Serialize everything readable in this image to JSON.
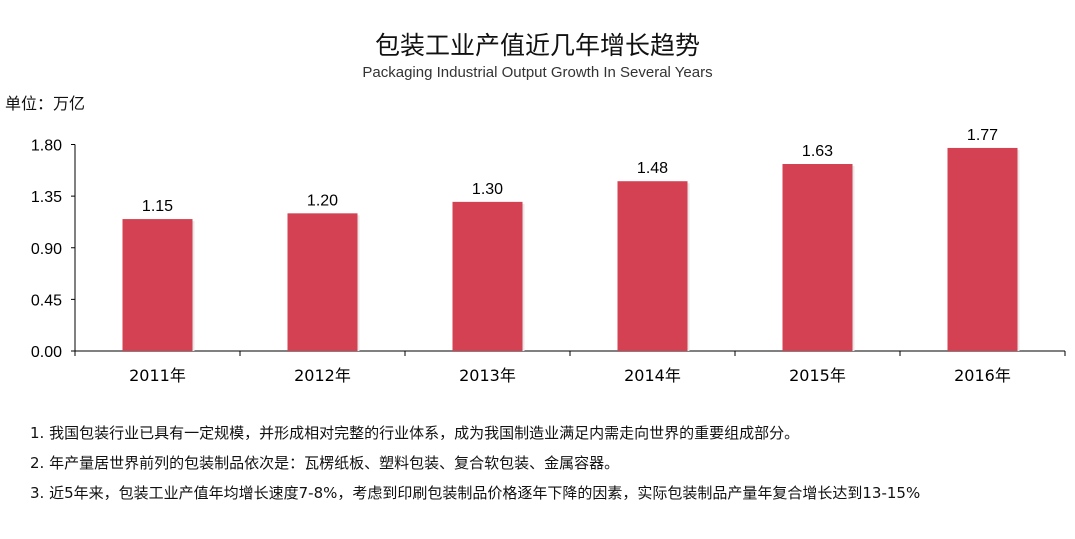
{
  "chart_data": {
    "type": "bar",
    "title": "包装工业产值近几年增长趋势",
    "subtitle": "Packaging Industrial Output Growth In Several Years",
    "ylabel": "单位：万亿",
    "categories": [
      "2011年",
      "2012年",
      "2013年",
      "2014年",
      "2015年",
      "2016年"
    ],
    "values": [
      1.15,
      1.2,
      1.3,
      1.48,
      1.63,
      1.77
    ],
    "value_labels": [
      "1.15",
      "1.20",
      "1.30",
      "1.48",
      "1.63",
      "1.77"
    ],
    "yticks": [
      "0.00",
      "0.45",
      "0.90",
      "1.35",
      "1.80"
    ],
    "ylim": [
      0,
      1.8
    ],
    "grid": false,
    "bar_color": "#d44152"
  },
  "notes": [
    "1. 我国包装行业已具有一定规模，并形成相对完整的行业体系，成为我国制造业满足内需走向世界的重要组成部分。",
    "2. 年产量居世界前列的包装制品依次是：瓦楞纸板、塑料包装、复合软包装、金属容器。",
    "3. 近5年来，包装工业产值年均增长速度7-8%，考虑到印刷包装制品价格逐年下降的因素，实际包装制品产量年复合增长达到13-15%"
  ]
}
